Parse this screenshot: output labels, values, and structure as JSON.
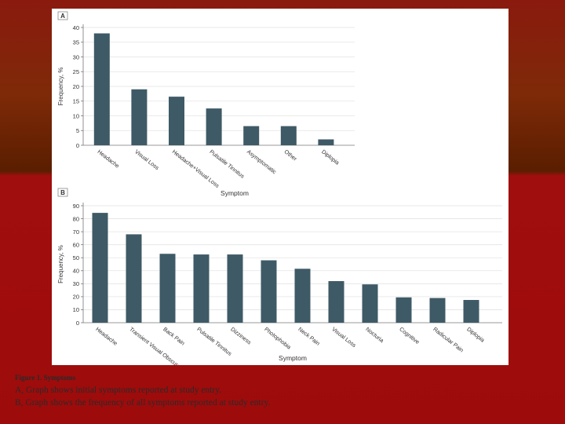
{
  "caption": {
    "title": "Figure 1. Symptoms",
    "line_a": "A, Graph shows initial symptoms reported at study entry.",
    "line_b": "B, Graph shows the frequency of all symptoms reported at study entry."
  },
  "colors": {
    "bar": "#3e5a66",
    "grid": "#e3e3e3",
    "axis": "#777777",
    "text": "#333333"
  },
  "chart_data": [
    {
      "panel_label": "A",
      "type": "bar",
      "xlabel": "Symptom",
      "ylabel": "Frequency, %",
      "ylim": [
        0,
        40
      ],
      "yticks": [
        0,
        5,
        10,
        15,
        20,
        25,
        30,
        35,
        40
      ],
      "grid": true,
      "categories": [
        "Headache",
        "Visual Loss",
        "Headache+Visual Loss",
        "Pulsatile Tinnitus",
        "Asymptomatic",
        "Other",
        "Diplopia"
      ],
      "values": [
        38,
        19,
        16.5,
        12.5,
        6.5,
        6.5,
        2
      ]
    },
    {
      "panel_label": "B",
      "type": "bar",
      "xlabel": "Symptom",
      "ylabel": "Frequency, %",
      "ylim": [
        0,
        90
      ],
      "yticks": [
        0,
        10,
        20,
        30,
        40,
        50,
        60,
        70,
        80,
        90
      ],
      "grid": true,
      "categories": [
        "Headache",
        "Transient Visual Obscurations",
        "Back Pain",
        "Pulsatile Tinnitus",
        "Dizziness",
        "Photophobia",
        "Neck Pain",
        "Visual Loss",
        "Nocturia",
        "Cognitive",
        "Radicular Pain",
        "Diplopia"
      ],
      "values": [
        84.5,
        68,
        53,
        52.5,
        52.5,
        48,
        41.5,
        32,
        29.5,
        19.5,
        19,
        17.5
      ]
    }
  ]
}
